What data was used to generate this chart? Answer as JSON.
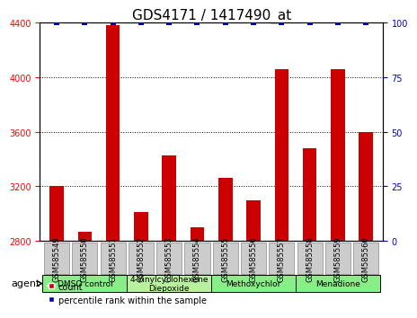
{
  "title": "GDS4171 / 1417490_at",
  "samples": [
    "GSM585549",
    "GSM585550",
    "GSM585551",
    "GSM585552",
    "GSM585553",
    "GSM585554",
    "GSM585555",
    "GSM585556",
    "GSM585557",
    "GSM585558",
    "GSM585559",
    "GSM585560"
  ],
  "counts": [
    3200,
    2870,
    4380,
    3010,
    3430,
    2900,
    3260,
    3100,
    4060,
    3480,
    4060,
    3600
  ],
  "percentile": [
    100,
    100,
    100,
    100,
    100,
    100,
    100,
    100,
    100,
    100,
    100,
    100
  ],
  "ylim_left": [
    2800,
    4400
  ],
  "ylim_right": [
    0,
    100
  ],
  "yticks_left": [
    2800,
    3200,
    3600,
    4000,
    4400
  ],
  "yticks_right": [
    0,
    25,
    50,
    75,
    100
  ],
  "bar_color": "#cc0000",
  "dot_color": "#0000bb",
  "bar_width": 0.5,
  "agents": [
    {
      "label": "DMSO control",
      "start": 0,
      "end": 3,
      "color": "#88ee88"
    },
    {
      "label": "4-Vinylcyclohexene\nDiepoxide",
      "start": 3,
      "end": 6,
      "color": "#b8f0a0"
    },
    {
      "label": "Methoxychlor",
      "start": 6,
      "end": 9,
      "color": "#88ee88"
    },
    {
      "label": "Menadione",
      "start": 9,
      "end": 12,
      "color": "#88ee88"
    }
  ],
  "sample_box_color": "#cccccc",
  "sample_box_edge": "#888888",
  "legend_count_color": "#cc0000",
  "legend_dot_color": "#0000bb",
  "background_color": "#ffffff",
  "grid_color": "#000000",
  "title_fontsize": 11,
  "tick_fontsize": 7,
  "label_fontsize": 8
}
